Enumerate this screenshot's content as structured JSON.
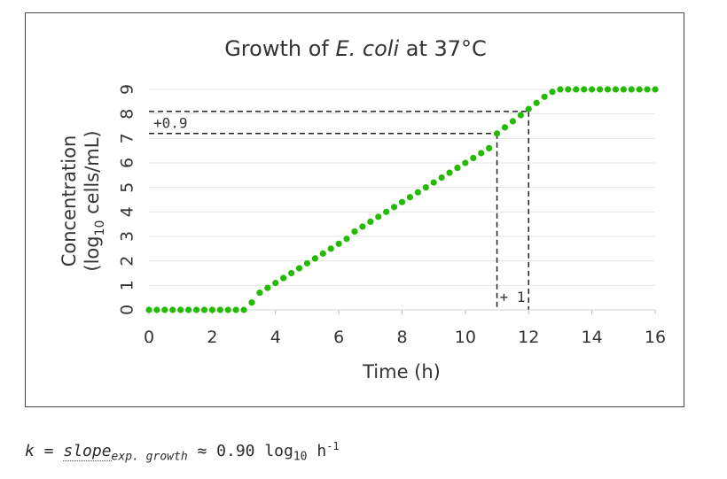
{
  "chart_data": {
    "type": "scatter",
    "title_prefix": "Growth of ",
    "title_italic": "E. coli",
    "title_suffix": " at 37°C",
    "xlabel": "Time (h)",
    "ylabel_line1": "Concentration",
    "ylabel_line2_prefix": "(log",
    "ylabel_line2_sub": "10",
    "ylabel_line2_suffix": " cells/mL)",
    "xlim": [
      0,
      16
    ],
    "ylim": [
      0,
      9
    ],
    "x_ticks": [
      "0",
      "2",
      "4",
      "6",
      "8",
      "10",
      "12",
      "14",
      "16"
    ],
    "y_ticks": [
      "0",
      "1",
      "2",
      "3",
      "4",
      "5",
      "6",
      "7",
      "8",
      "9"
    ],
    "grid": true,
    "marker_color": "#22bb00",
    "series": [
      {
        "x": [
          0,
          0.25,
          0.5,
          0.75,
          1,
          1.25,
          1.5,
          1.75,
          2,
          2.25,
          2.5,
          2.75,
          3,
          3.25,
          3.5,
          3.75,
          4,
          4.25,
          4.5,
          4.75,
          5,
          5.25,
          5.5,
          5.75,
          6,
          6.25,
          6.5,
          6.75,
          7,
          7.25,
          7.5,
          7.75,
          8,
          8.25,
          8.5,
          8.75,
          9,
          9.25,
          9.5,
          9.75,
          10,
          10.25,
          10.5,
          10.75,
          11,
          11.25,
          11.5,
          11.75,
          12,
          12.25,
          12.5,
          12.75,
          13,
          13.25,
          13.5,
          13.75,
          14,
          14.25,
          14.5,
          14.75,
          15,
          15.25,
          15.5,
          15.75,
          16
        ],
        "y": [
          0,
          0,
          0,
          0,
          0,
          0,
          0,
          0,
          0,
          0,
          0,
          0,
          0,
          0.3,
          0.7,
          0.9,
          1.1,
          1.3,
          1.5,
          1.7,
          1.9,
          2.1,
          2.3,
          2.5,
          2.7,
          2.9,
          3.2,
          3.4,
          3.6,
          3.8,
          4.0,
          4.2,
          4.4,
          4.6,
          4.8,
          5.0,
          5.2,
          5.4,
          5.6,
          5.8,
          6.0,
          6.2,
          6.4,
          6.6,
          7.2,
          7.45,
          7.7,
          7.95,
          8.2,
          8.45,
          8.7,
          8.9,
          9,
          9,
          9,
          9,
          9,
          9,
          9,
          9,
          9,
          9,
          9,
          9,
          9
        ]
      }
    ],
    "annotations": {
      "delta_y_label": "+0.9",
      "delta_x_label": "+ 1",
      "ref_x1": 11,
      "ref_x2": 12,
      "ref_y1": 7.2,
      "ref_y2": 8.1
    }
  },
  "formula": {
    "k": "k",
    "equals": " = ",
    "slope": "slope",
    "slope_sub": "exp. growth",
    "approx": " ≈ 0.90 log",
    "log_sub": "10",
    "unit": " h",
    "unit_sup": "-1"
  }
}
